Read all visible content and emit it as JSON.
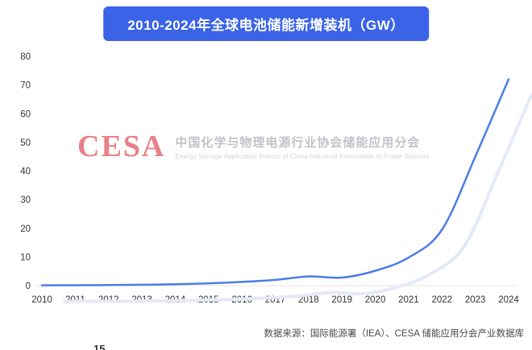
{
  "title": "2010-2024年全球电池储能新增装机（GW）",
  "watermark": {
    "logo": "CESA",
    "line_cn": "中国化学与物理电源行业协会储能应用分会",
    "line_en": "Energy Storage Application Branch of China Industrial Association of Power Sources"
  },
  "footer": "数据来源：国际能源署（IEA）、CESA 储能应用分会产业数据库",
  "partial_bottom_text": "15",
  "colors": {
    "banner_blue": "#3a63e8",
    "line_blue": "#4d7de6",
    "ghost_line": "#e3e9f8",
    "axis_text": "#333333",
    "baseline": "#e6e6e6",
    "watermark_red": "#e2555f",
    "watermark_gray": "#c3c3c8"
  },
  "chart_data": {
    "type": "line",
    "title": "2010-2024年全球电池储能新增装机（GW）",
    "x": [
      2010,
      2011,
      2012,
      2013,
      2014,
      2015,
      2016,
      2017,
      2018,
      2019,
      2020,
      2021,
      2022,
      2023,
      2024
    ],
    "series": [
      {
        "name": "全球电池储能新增装机 (GW)",
        "values": [
          0.1,
          0.15,
          0.2,
          0.3,
          0.5,
          0.8,
          1.3,
          2.0,
          3.2,
          2.8,
          5.2,
          9.8,
          19.5,
          45.0,
          72.0
        ]
      }
    ],
    "xlabel": "",
    "ylabel": "",
    "ylim": [
      0,
      80
    ],
    "yticks": [
      0,
      10,
      20,
      30,
      40,
      50,
      60,
      70,
      80
    ],
    "grid": false,
    "legend_position": "none"
  }
}
